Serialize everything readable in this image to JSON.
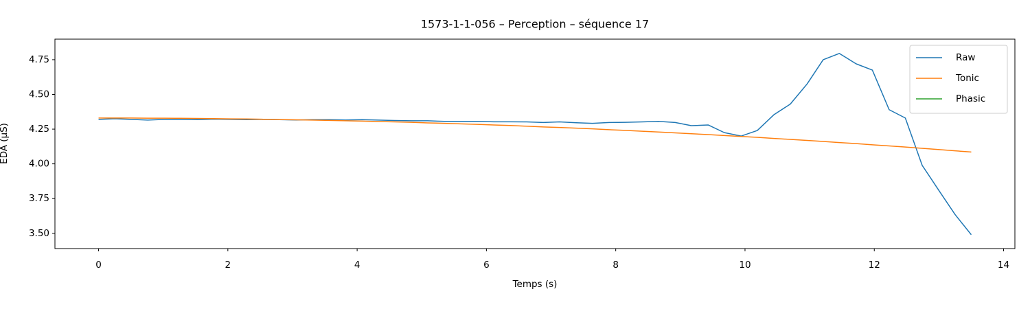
{
  "chart_data": {
    "type": "line",
    "title": "1573-1-1-056 – Perception – séquence 17",
    "x_label": "Temps (s)",
    "y_label": "EDA (µS)",
    "x": [
      0,
      0.25,
      0.51,
      0.76,
      1.02,
      1.27,
      1.53,
      1.78,
      2.04,
      2.29,
      2.55,
      2.8,
      3.06,
      3.31,
      3.57,
      3.82,
      4.08,
      4.33,
      4.58,
      4.84,
      5.09,
      5.35,
      5.6,
      5.86,
      6.11,
      6.37,
      6.62,
      6.88,
      7.13,
      7.39,
      7.64,
      7.9,
      8.15,
      8.41,
      8.66,
      8.92,
      9.17,
      9.43,
      9.68,
      9.94,
      10.19,
      10.45,
      10.7,
      10.96,
      11.21,
      11.46,
      11.72,
      11.97,
      12.23,
      12.48,
      12.74,
      12.99,
      13.25,
      13.5
    ],
    "series": [
      {
        "name": "Raw",
        "color": "#1f77b4",
        "values": [
          4.32,
          4.325,
          4.32,
          4.315,
          4.32,
          4.32,
          4.318,
          4.322,
          4.32,
          4.318,
          4.32,
          4.318,
          4.316,
          4.318,
          4.318,
          4.316,
          4.318,
          4.315,
          4.312,
          4.31,
          4.31,
          4.306,
          4.306,
          4.306,
          4.303,
          4.303,
          4.302,
          4.298,
          4.302,
          4.296,
          4.292,
          4.298,
          4.299,
          4.302,
          4.306,
          4.298,
          4.275,
          4.28,
          4.225,
          4.2,
          4.24,
          4.355,
          4.43,
          4.575,
          4.75,
          4.795,
          4.72,
          4.675,
          4.39,
          4.33,
          3.99,
          3.815,
          3.635,
          3.49
        ]
      },
      {
        "name": "Tonic",
        "color": "#ff7f0e",
        "values": [
          4.33,
          4.33,
          4.33,
          4.329,
          4.329,
          4.328,
          4.327,
          4.326,
          4.324,
          4.323,
          4.321,
          4.319,
          4.317,
          4.315,
          4.313,
          4.31,
          4.308,
          4.305,
          4.302,
          4.299,
          4.295,
          4.292,
          4.288,
          4.284,
          4.28,
          4.276,
          4.271,
          4.266,
          4.262,
          4.257,
          4.252,
          4.246,
          4.241,
          4.235,
          4.229,
          4.223,
          4.217,
          4.211,
          4.204,
          4.197,
          4.191,
          4.183,
          4.176,
          4.169,
          4.161,
          4.153,
          4.146,
          4.137,
          4.129,
          4.121,
          4.112,
          4.103,
          4.094,
          4.085
        ]
      },
      {
        "name": "Phasic",
        "color": "#2ca02c",
        "values": [
          null,
          null,
          null,
          null,
          null,
          null,
          null,
          null,
          null,
          null,
          null,
          null,
          null,
          null,
          null,
          null,
          null,
          null,
          null,
          null,
          null,
          null,
          null,
          null,
          null,
          null,
          null,
          null,
          null,
          null,
          null,
          null,
          null,
          null,
          null,
          null,
          null,
          null,
          null,
          null,
          null,
          null,
          null,
          null,
          null,
          null,
          null,
          null,
          null,
          null,
          null,
          null,
          null,
          null
        ]
      }
    ],
    "xlim": [
      -0.675,
      14.175
    ],
    "xticks": [
      0,
      2,
      4,
      6,
      8,
      10,
      12,
      14
    ],
    "ylim": [
      3.39,
      4.898
    ],
    "yticks": [
      {
        "value": 3.5,
        "label": "3.50"
      },
      3.75,
      {
        "value": 4.0,
        "label": "4.00"
      },
      4.25,
      {
        "value": 4.5,
        "label": "4.50"
      },
      4.75
    ],
    "grid": false,
    "legend": "upper right"
  }
}
